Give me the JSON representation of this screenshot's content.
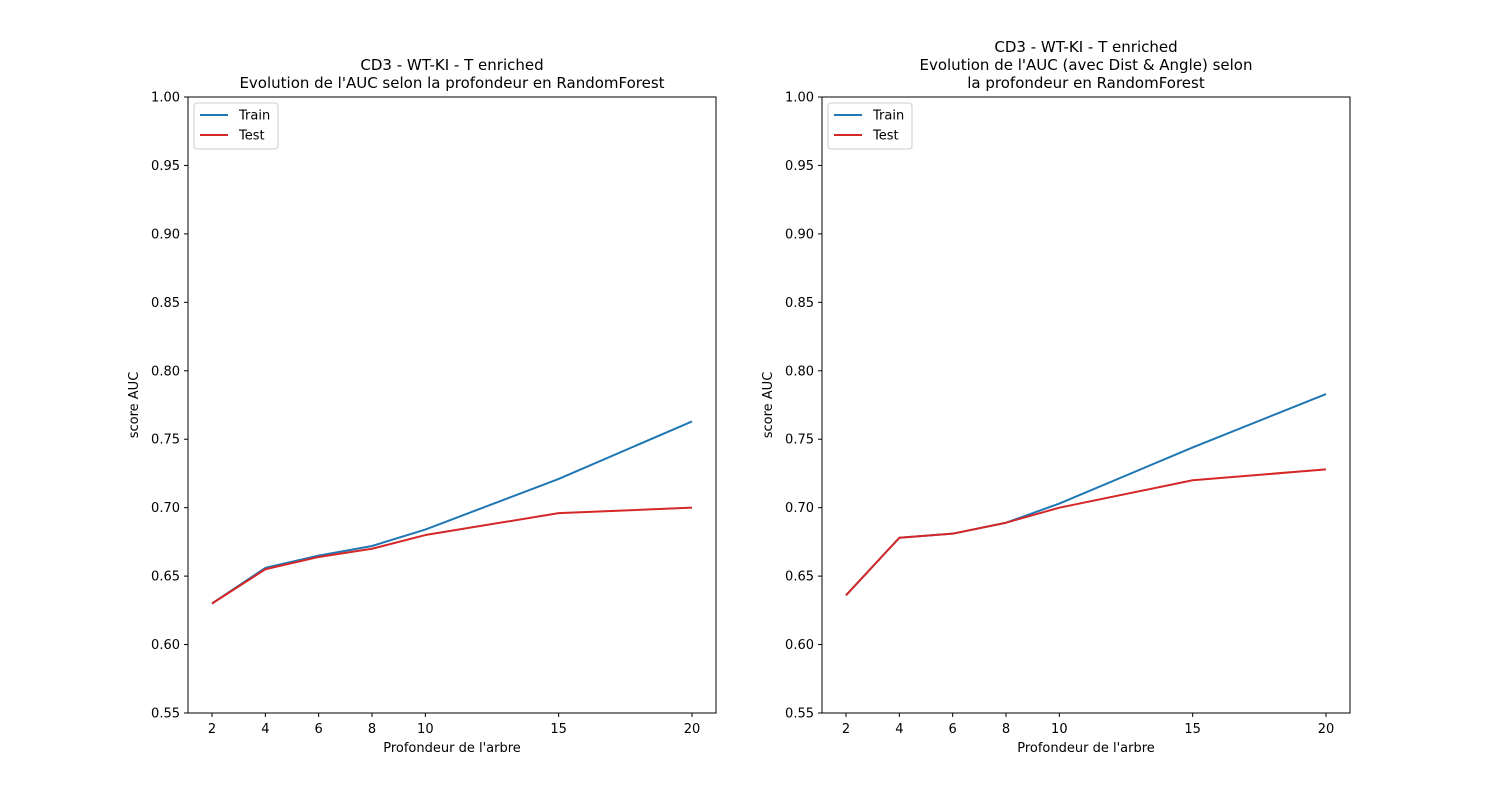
{
  "chart_data": [
    {
      "type": "line",
      "title_lines": [
        "CD3 - WT-KI - T enriched",
        "Evolution de l'AUC selon la profondeur en RandomForest"
      ],
      "xlabel": "Profondeur de l'arbre",
      "ylabel": "score AUC",
      "x": [
        2,
        4,
        6,
        8,
        10,
        15,
        20
      ],
      "xticks": [
        "2",
        "4",
        "6",
        "8",
        "10",
        "15",
        "20"
      ],
      "ylim": [
        0.55,
        1.0
      ],
      "yticks": [
        "0.55",
        "0.60",
        "0.65",
        "0.70",
        "0.75",
        "0.80",
        "0.85",
        "0.90",
        "0.95",
        "1.00"
      ],
      "legend_position": "top-left",
      "grid": false,
      "series": [
        {
          "name": "Train",
          "color": "#1f77b4",
          "values": [
            0.63,
            0.656,
            0.665,
            0.672,
            0.684,
            0.721,
            0.763
          ]
        },
        {
          "name": "Test",
          "color": "#d62728",
          "values": [
            0.63,
            0.655,
            0.664,
            0.67,
            0.68,
            0.696,
            0.7
          ]
        }
      ]
    },
    {
      "type": "line",
      "title_lines": [
        "CD3 - WT-KI - T enriched",
        "Evolution de l'AUC (avec Dist & Angle) selon",
        "la profondeur en RandomForest"
      ],
      "xlabel": "Profondeur de l'arbre",
      "ylabel": "score AUC",
      "x": [
        2,
        4,
        6,
        8,
        10,
        15,
        20
      ],
      "xticks": [
        "2",
        "4",
        "6",
        "8",
        "10",
        "15",
        "20"
      ],
      "ylim": [
        0.55,
        1.0
      ],
      "yticks": [
        "0.55",
        "0.60",
        "0.65",
        "0.70",
        "0.75",
        "0.80",
        "0.85",
        "0.90",
        "0.95",
        "1.00"
      ],
      "legend_position": "top-left",
      "grid": false,
      "series": [
        {
          "name": "Train",
          "color": "#1f77b4",
          "values": [
            0.636,
            0.678,
            0.681,
            0.689,
            0.703,
            0.744,
            0.783
          ]
        },
        {
          "name": "Test",
          "color": "#d62728",
          "values": [
            0.636,
            0.678,
            0.681,
            0.689,
            0.7,
            0.72,
            0.728
          ]
        }
      ]
    }
  ]
}
